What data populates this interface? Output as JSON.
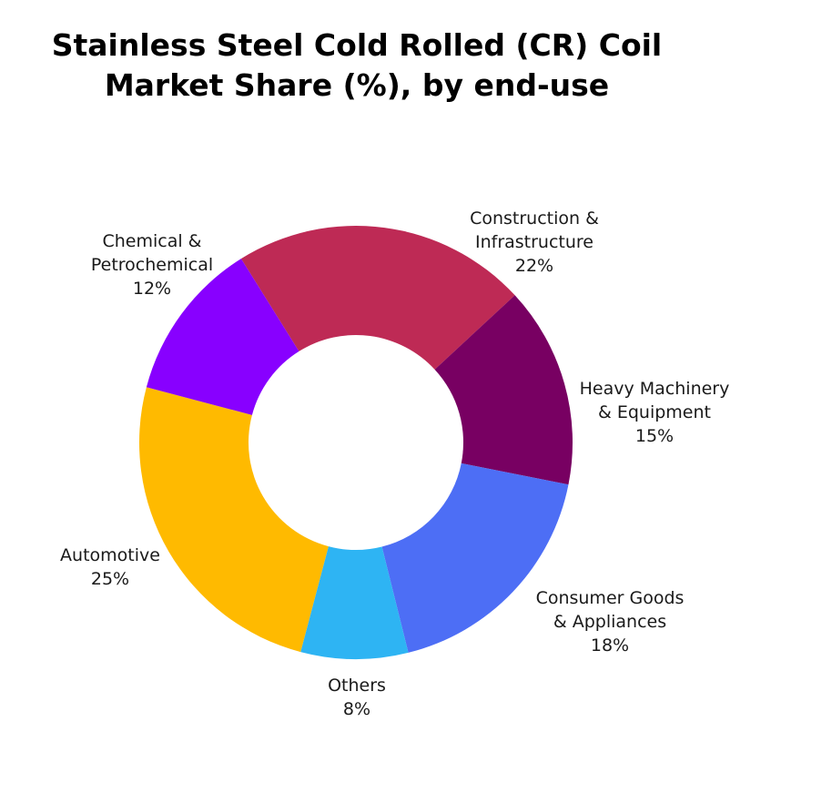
{
  "chart_data": {
    "type": "pie",
    "donut": true,
    "title_lines": [
      "Stainless Steel Cold Rolled (CR) Coil",
      "Market Share (%), by end-use"
    ],
    "slices": [
      {
        "label_lines": [
          "Construction &",
          "Infrastructure"
        ],
        "value": 22,
        "value_label": "22%",
        "color": "#BE2A55"
      },
      {
        "label_lines": [
          "Heavy Machinery",
          "& Equipment"
        ],
        "value": 15,
        "value_label": "15%",
        "color": "#780062"
      },
      {
        "label_lines": [
          "Consumer Goods",
          "& Appliances"
        ],
        "value": 18,
        "value_label": "18%",
        "color": "#4D6EF5"
      },
      {
        "label_lines": [
          "Others"
        ],
        "value": 8,
        "value_label": "8%",
        "color": "#2EB4F3"
      },
      {
        "label_lines": [
          "Automotive"
        ],
        "value": 25,
        "value_label": "25%",
        "color": "#FFBA00"
      },
      {
        "label_lines": [
          "Chemical &",
          "Petrochemical"
        ],
        "value": 12,
        "value_label": "12%",
        "color": "#8800FF"
      }
    ]
  }
}
